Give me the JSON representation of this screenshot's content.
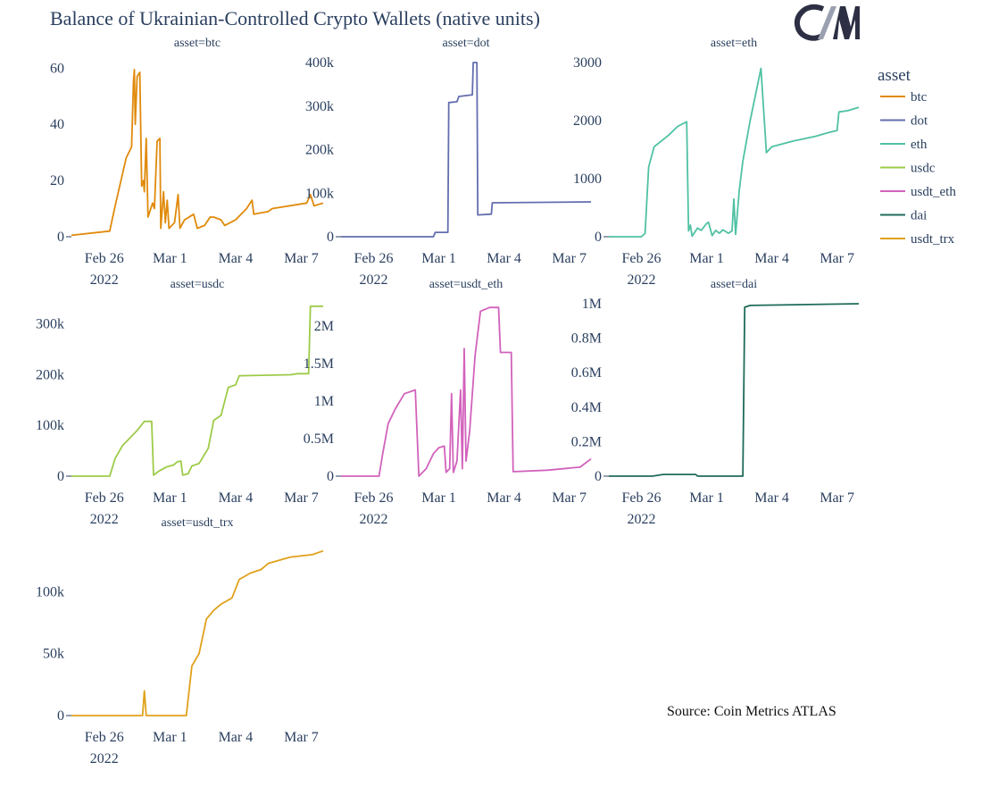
{
  "title": "Balance of Ukrainian-Controlled Crypto Wallets (native units)",
  "source": "Source: Coin Metrics ATLAS",
  "logo_text": "CM",
  "chart_data": {
    "type": "line",
    "x_axis": {
      "range": [
        "2022-02-24T12:00",
        "2022-03-08"
      ],
      "ticks": [
        {
          "date": "2022-02-26",
          "label": "Feb 26",
          "sublabel": "2022"
        },
        {
          "date": "2022-03-01",
          "label": "Mar 1",
          "sublabel": ""
        },
        {
          "date": "2022-03-04",
          "label": "Mar 4",
          "sublabel": ""
        },
        {
          "date": "2022-03-07",
          "label": "Mar 7",
          "sublabel": ""
        }
      ]
    },
    "legend": {
      "title": "asset",
      "position": "right"
    },
    "grid": false,
    "panels": [
      {
        "name": "btc",
        "title": "asset=btc",
        "color": "#E08A0B",
        "ylim": [
          0,
          62
        ],
        "yticks": [
          {
            "v": 0,
            "label": "0"
          },
          {
            "v": 20,
            "label": "20"
          },
          {
            "v": 40,
            "label": "40"
          },
          {
            "v": 60,
            "label": "60"
          }
        ],
        "points": [
          [
            "2022-02-24T12:00",
            0.5
          ],
          [
            "2022-02-26T06:00",
            2
          ],
          [
            "2022-02-26T12:00",
            11
          ],
          [
            "2022-02-27T00:00",
            28
          ],
          [
            "2022-02-27T06:00",
            32
          ],
          [
            "2022-02-27T08:00",
            55
          ],
          [
            "2022-02-27T09:00",
            59.5
          ],
          [
            "2022-02-27T10:00",
            40
          ],
          [
            "2022-02-27T12:00",
            57
          ],
          [
            "2022-02-27T15:00",
            58.5
          ],
          [
            "2022-02-27T17:00",
            18
          ],
          [
            "2022-02-27T19:00",
            20
          ],
          [
            "2022-02-27T20:00",
            16
          ],
          [
            "2022-02-27T22:00",
            35
          ],
          [
            "2022-02-28T00:00",
            7
          ],
          [
            "2022-02-28T05:00",
            12
          ],
          [
            "2022-02-28T07:00",
            10
          ],
          [
            "2022-02-28T10:00",
            34
          ],
          [
            "2022-02-28T13:00",
            35
          ],
          [
            "2022-02-28T14:00",
            3
          ],
          [
            "2022-02-28T17:00",
            16
          ],
          [
            "2022-02-28T19:00",
            5
          ],
          [
            "2022-02-28T21:00",
            13
          ],
          [
            "2022-02-28T23:00",
            3
          ],
          [
            "2022-03-01T05:00",
            5
          ],
          [
            "2022-03-01T09:00",
            15
          ],
          [
            "2022-03-01T11:00",
            3
          ],
          [
            "2022-03-01T16:00",
            6
          ],
          [
            "2022-03-02T02:00",
            8
          ],
          [
            "2022-03-02T06:00",
            3
          ],
          [
            "2022-03-02T14:00",
            4
          ],
          [
            "2022-03-02T20:00",
            7
          ],
          [
            "2022-03-03T00:00",
            7
          ],
          [
            "2022-03-03T08:00",
            6
          ],
          [
            "2022-03-03T12:00",
            4
          ],
          [
            "2022-03-04T00:00",
            6
          ],
          [
            "2022-03-04T12:00",
            10
          ],
          [
            "2022-03-04T18:00",
            13
          ],
          [
            "2022-03-04T20:00",
            8
          ],
          [
            "2022-03-05T12:00",
            9
          ],
          [
            "2022-03-05T16:00",
            10
          ],
          [
            "2022-03-07T06:00",
            12
          ],
          [
            "2022-03-07T10:00",
            15
          ],
          [
            "2022-03-07T14:00",
            11
          ],
          [
            "2022-03-08T00:00",
            12
          ]
        ]
      },
      {
        "name": "dot",
        "title": "asset=dot",
        "color": "#636EAF",
        "ylim": [
          0,
          400000
        ],
        "yticks": [
          {
            "v": 0,
            "label": "0"
          },
          {
            "v": 100000,
            "label": "100k"
          },
          {
            "v": 200000,
            "label": "200k"
          },
          {
            "v": 300000,
            "label": "300k"
          },
          {
            "v": 400000,
            "label": "400k"
          }
        ],
        "points": [
          [
            "2022-02-24T12:00",
            0
          ],
          [
            "2022-02-28T18:00",
            0
          ],
          [
            "2022-02-28T20:00",
            10000
          ],
          [
            "2022-03-01T10:00",
            10000
          ],
          [
            "2022-03-01T11:00",
            308000
          ],
          [
            "2022-03-01T20:00",
            310000
          ],
          [
            "2022-03-01T22:00",
            322000
          ],
          [
            "2022-03-02T13:00",
            326000
          ],
          [
            "2022-03-02T14:00",
            400000
          ],
          [
            "2022-03-02T18:00",
            400000
          ],
          [
            "2022-03-02T19:00",
            50000
          ],
          [
            "2022-03-03T10:00",
            52000
          ],
          [
            "2022-03-03T11:00",
            78000
          ],
          [
            "2022-03-08T00:00",
            80000
          ]
        ]
      },
      {
        "name": "eth",
        "title": "asset=eth",
        "color": "#4FC1A3",
        "ylim": [
          0,
          3000
        ],
        "yticks": [
          {
            "v": 0,
            "label": "0"
          },
          {
            "v": 1000,
            "label": "1000"
          },
          {
            "v": 2000,
            "label": "2000"
          },
          {
            "v": 3000,
            "label": "3000"
          }
        ],
        "points": [
          [
            "2022-02-24T12:00",
            0
          ],
          [
            "2022-02-26T00:00",
            0
          ],
          [
            "2022-02-26T04:00",
            60
          ],
          [
            "2022-02-26T08:00",
            1200
          ],
          [
            "2022-02-26T14:00",
            1550
          ],
          [
            "2022-02-27T06:00",
            1750
          ],
          [
            "2022-02-27T16:00",
            1900
          ],
          [
            "2022-02-28T02:00",
            1980
          ],
          [
            "2022-02-28T04:00",
            100
          ],
          [
            "2022-02-28T06:00",
            200
          ],
          [
            "2022-02-28T08:00",
            10
          ],
          [
            "2022-02-28T14:00",
            150
          ],
          [
            "2022-02-28T18:00",
            110
          ],
          [
            "2022-03-01T00:00",
            230
          ],
          [
            "2022-03-01T02:00",
            250
          ],
          [
            "2022-03-01T06:00",
            20
          ],
          [
            "2022-03-01T10:00",
            110
          ],
          [
            "2022-03-01T14:00",
            60
          ],
          [
            "2022-03-01T18:00",
            120
          ],
          [
            "2022-03-02T00:00",
            60
          ],
          [
            "2022-03-02T04:00",
            100
          ],
          [
            "2022-03-02T06:00",
            650
          ],
          [
            "2022-03-02T08:00",
            40
          ],
          [
            "2022-03-02T12:00",
            800
          ],
          [
            "2022-03-02T16:00",
            1300
          ],
          [
            "2022-03-03T00:00",
            2000
          ],
          [
            "2022-03-03T08:00",
            2600
          ],
          [
            "2022-03-03T12:00",
            2900
          ],
          [
            "2022-03-03T18:00",
            1450
          ],
          [
            "2022-03-04T00:00",
            1550
          ],
          [
            "2022-03-05T00:00",
            1650
          ],
          [
            "2022-03-06T00:00",
            1730
          ],
          [
            "2022-03-06T16:00",
            1800
          ],
          [
            "2022-03-07T00:00",
            1830
          ],
          [
            "2022-03-07T02:00",
            2150
          ],
          [
            "2022-03-07T12:00",
            2170
          ],
          [
            "2022-03-08T00:00",
            2230
          ]
        ]
      },
      {
        "name": "usdc",
        "title": "asset=usdc",
        "color": "#9DCB48",
        "ylim": [
          0,
          340000
        ],
        "yticks": [
          {
            "v": 0,
            "label": "0"
          },
          {
            "v": 100000,
            "label": "100k"
          },
          {
            "v": 200000,
            "label": "200k"
          },
          {
            "v": 300000,
            "label": "300k"
          }
        ],
        "points": [
          [
            "2022-02-24T12:00",
            0
          ],
          [
            "2022-02-26T06:00",
            0
          ],
          [
            "2022-02-26T12:00",
            35000
          ],
          [
            "2022-02-26T20:00",
            60000
          ],
          [
            "2022-02-27T04:00",
            75000
          ],
          [
            "2022-02-27T12:00",
            90000
          ],
          [
            "2022-02-27T20:00",
            108000
          ],
          [
            "2022-02-28T04:00",
            108000
          ],
          [
            "2022-02-28T06:00",
            2000
          ],
          [
            "2022-02-28T12:00",
            10000
          ],
          [
            "2022-02-28T20:00",
            18000
          ],
          [
            "2022-03-01T04:00",
            22000
          ],
          [
            "2022-03-01T08:00",
            28000
          ],
          [
            "2022-03-01T12:00",
            30000
          ],
          [
            "2022-03-01T14:00",
            2000
          ],
          [
            "2022-03-01T20:00",
            5000
          ],
          [
            "2022-03-02T00:00",
            20000
          ],
          [
            "2022-03-02T08:00",
            25000
          ],
          [
            "2022-03-02T18:00",
            55000
          ],
          [
            "2022-03-03T00:00",
            110000
          ],
          [
            "2022-03-03T08:00",
            120000
          ],
          [
            "2022-03-03T16:00",
            175000
          ],
          [
            "2022-03-04T00:00",
            180000
          ],
          [
            "2022-03-04T04:00",
            198000
          ],
          [
            "2022-03-06T12:00",
            200000
          ],
          [
            "2022-03-06T20:00",
            202000
          ],
          [
            "2022-03-07T08:00",
            202000
          ],
          [
            "2022-03-07T10:00",
            335000
          ],
          [
            "2022-03-08T00:00",
            335000
          ]
        ]
      },
      {
        "name": "usdt_eth",
        "title": "asset=usdt_eth",
        "color": "#D262BC",
        "ylim": [
          0,
          2300000
        ],
        "yticks": [
          {
            "v": 0,
            "label": "0"
          },
          {
            "v": 500000,
            "label": "0.5M"
          },
          {
            "v": 1000000,
            "label": "1M"
          },
          {
            "v": 1500000,
            "label": "1.5M"
          },
          {
            "v": 2000000,
            "label": "2M"
          }
        ],
        "points": [
          [
            "2022-02-24T12:00",
            0
          ],
          [
            "2022-02-26T06:00",
            0
          ],
          [
            "2022-02-26T10:00",
            300000
          ],
          [
            "2022-02-26T16:00",
            700000
          ],
          [
            "2022-02-27T00:00",
            900000
          ],
          [
            "2022-02-27T10:00",
            1100000
          ],
          [
            "2022-02-27T22:00",
            1150000
          ],
          [
            "2022-02-28T02:00",
            0
          ],
          [
            "2022-02-28T10:00",
            100000
          ],
          [
            "2022-02-28T18:00",
            300000
          ],
          [
            "2022-03-01T00:00",
            380000
          ],
          [
            "2022-03-01T06:00",
            400000
          ],
          [
            "2022-03-01T08:00",
            50000
          ],
          [
            "2022-03-01T12:00",
            100000
          ],
          [
            "2022-03-01T14:00",
            1100000
          ],
          [
            "2022-03-01T16:00",
            50000
          ],
          [
            "2022-03-01T20:00",
            200000
          ],
          [
            "2022-03-02T00:00",
            1150000
          ],
          [
            "2022-03-02T02:00",
            100000
          ],
          [
            "2022-03-02T04:00",
            1700000
          ],
          [
            "2022-03-02T06:00",
            200000
          ],
          [
            "2022-03-02T10:00",
            600000
          ],
          [
            "2022-03-02T16:00",
            1600000
          ],
          [
            "2022-03-02T22:00",
            2200000
          ],
          [
            "2022-03-03T08:00",
            2250000
          ],
          [
            "2022-03-03T18:00",
            2250000
          ],
          [
            "2022-03-03T20:00",
            1650000
          ],
          [
            "2022-03-04T08:00",
            1650000
          ],
          [
            "2022-03-04T10:00",
            60000
          ],
          [
            "2022-03-06T00:00",
            80000
          ],
          [
            "2022-03-07T12:00",
            120000
          ],
          [
            "2022-03-08T00:00",
            230000
          ]
        ]
      },
      {
        "name": "dai",
        "title": "asset=dai",
        "color": "#1F6B5A",
        "ylim": [
          0,
          1000000
        ],
        "yticks": [
          {
            "v": 0,
            "label": "0"
          },
          {
            "v": 200000,
            "label": "0.2M"
          },
          {
            "v": 400000,
            "label": "0.4M"
          },
          {
            "v": 600000,
            "label": "0.6M"
          },
          {
            "v": 800000,
            "label": "0.8M"
          },
          {
            "v": 1000000,
            "label": "1M"
          }
        ],
        "points": [
          [
            "2022-02-24T12:00",
            0
          ],
          [
            "2022-02-26T12:00",
            0
          ],
          [
            "2022-02-27T00:00",
            10000
          ],
          [
            "2022-02-28T12:00",
            10000
          ],
          [
            "2022-02-28T14:00",
            0
          ],
          [
            "2022-03-02T16:00",
            0
          ],
          [
            "2022-03-02T18:00",
            980000
          ],
          [
            "2022-03-03T00:00",
            990000
          ],
          [
            "2022-03-08T00:00",
            1000000
          ]
        ]
      },
      {
        "name": "usdt_trx",
        "title": "asset=usdt_trx",
        "color": "#E0A11B",
        "ylim": [
          0,
          140000
        ],
        "yticks": [
          {
            "v": 0,
            "label": "0"
          },
          {
            "v": 50000,
            "label": "50k"
          },
          {
            "v": 100000,
            "label": "100k"
          }
        ],
        "points": [
          [
            "2022-02-24T12:00",
            0
          ],
          [
            "2022-02-27T18:00",
            0
          ],
          [
            "2022-02-27T20:00",
            20000
          ],
          [
            "2022-02-27T22:00",
            0
          ],
          [
            "2022-03-01T18:00",
            0
          ],
          [
            "2022-03-02T00:00",
            40000
          ],
          [
            "2022-03-02T08:00",
            50000
          ],
          [
            "2022-03-02T16:00",
            78000
          ],
          [
            "2022-03-03T00:00",
            85000
          ],
          [
            "2022-03-03T08:00",
            90000
          ],
          [
            "2022-03-03T20:00",
            95000
          ],
          [
            "2022-03-04T04:00",
            110000
          ],
          [
            "2022-03-04T16:00",
            115000
          ],
          [
            "2022-03-05T04:00",
            118000
          ],
          [
            "2022-03-05T12:00",
            123000
          ],
          [
            "2022-03-06T12:00",
            128000
          ],
          [
            "2022-03-07T12:00",
            130000
          ],
          [
            "2022-03-08T00:00",
            133000
          ]
        ]
      }
    ]
  }
}
